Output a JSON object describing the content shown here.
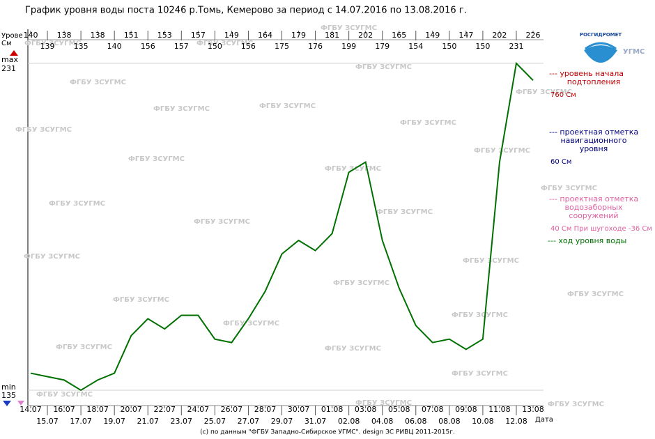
{
  "chart_data": {
    "type": "line",
    "title": "График уровня воды поста 10246 р.Томь, Кемерово за период с 14.07.2016 по 13.08.2016 г.",
    "y_label": [
      "Урове",
      "См"
    ],
    "x_label": "Дата",
    "max_label": "max",
    "min_label": "min",
    "categories": [
      "14.07",
      "15.07",
      "16.07",
      "17.07",
      "18.07",
      "19.07",
      "20.07",
      "21.07",
      "22.07",
      "23.07",
      "24.07",
      "25.07",
      "26.07",
      "27.07",
      "28.07",
      "29.07",
      "30.07",
      "31.07",
      "01.08",
      "02.08",
      "03.08",
      "04.08",
      "05.08",
      "06.08",
      "07.08",
      "08.08",
      "09.08",
      "10.08",
      "11.08",
      "12.08",
      "13.08"
    ],
    "series": [
      {
        "name": "--- ход уровня воды",
        "color": "#007000",
        "values": [
          140,
          139,
          138,
          135,
          138,
          140,
          151,
          156,
          153,
          157,
          157,
          150,
          149,
          156,
          164,
          175,
          179,
          176,
          181,
          199,
          202,
          179,
          165,
          154,
          149,
          150,
          147,
          150,
          202,
          231,
          226
        ]
      }
    ],
    "ylim": [
      130.5,
      241
    ],
    "yticks": [
      135,
      231
    ],
    "legend": [
      {
        "lines": [
          "--- уровень начала",
          "подтопления"
        ],
        "value": "760 См",
        "color": "#c00000"
      },
      {
        "lines": [
          "--- проектная отметка",
          "навигационного",
          "уровня"
        ],
        "value": "60 См",
        "color": "#000080"
      },
      {
        "lines": [
          "--- проектная отметка",
          "водозаборных",
          "сооружений"
        ],
        "value": "40 См При шугоходе -36 См",
        "color": "#e060a0"
      }
    ],
    "watermark": "ФГБУ ЗСУГМС",
    "logo": [
      "РОСГИДРОМЕТ",
      "УГМС"
    ],
    "footer": "(с) по данным \"ФГБУ Западно-Сибирское УГМС\". design ЗС РИВЦ 2011-2015г."
  }
}
